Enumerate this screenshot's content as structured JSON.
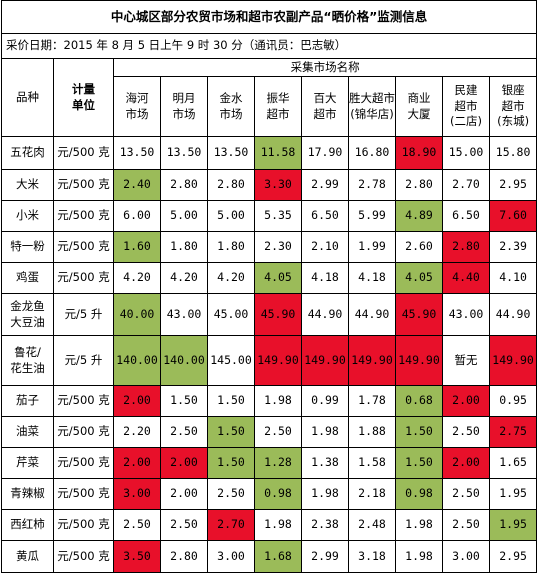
{
  "title": "中心城区部分农贸市场和超市农副产品“晒价格”监测信息",
  "subtitle": "采价日期：2015 年 8 月 5 日上午 9 时 30 分（通讯员：巴志敏）",
  "header": {
    "item": "品种",
    "unit": "计量\n单位",
    "group": "采集市场名称",
    "markets": [
      "海河\n市场",
      "明月\n市场",
      "金水\n市场",
      "振华\n超市",
      "百大\n超市",
      "胜大超市\n(锦华店)",
      "商业\n大厦",
      "民建\n超市\n(二店)",
      "银座\n超市\n(东城)"
    ]
  },
  "table": {
    "rows": [
      {
        "name": "五花肉",
        "unit": "元/500 克",
        "cells": [
          "13.50",
          "13.50",
          "13.50",
          "11.58",
          "17.90",
          "16.80",
          "18.90",
          "15.00",
          "15.80"
        ],
        "fills": [
          null,
          null,
          null,
          "#9bbb59",
          null,
          null,
          "#e8102a",
          null,
          null
        ]
      },
      {
        "name": "大米",
        "unit": "元/500 克",
        "cells": [
          "2.40",
          "2.80",
          "2.80",
          "3.30",
          "2.99",
          "2.78",
          "2.80",
          "2.70",
          "2.95"
        ],
        "fills": [
          "#9bbb59",
          null,
          null,
          "#e8102a",
          null,
          null,
          null,
          null,
          null
        ]
      },
      {
        "name": "小米",
        "unit": "元/500 克",
        "cells": [
          "6.00",
          "5.00",
          "5.00",
          "5.35",
          "6.50",
          "5.99",
          "4.89",
          "6.50",
          "7.60"
        ],
        "fills": [
          null,
          null,
          null,
          null,
          null,
          null,
          "#9bbb59",
          null,
          "#e8102a"
        ]
      },
      {
        "name": "特一粉",
        "unit": "元/500 克",
        "cells": [
          "1.60",
          "1.80",
          "1.80",
          "2.30",
          "2.10",
          "1.99",
          "2.60",
          "2.80",
          "2.39"
        ],
        "fills": [
          "#9bbb59",
          null,
          null,
          null,
          null,
          null,
          null,
          "#e8102a",
          null
        ]
      },
      {
        "name": "鸡蛋",
        "unit": "元/500 克",
        "cells": [
          "4.20",
          "4.20",
          "4.20",
          "4.05",
          "4.18",
          "4.18",
          "4.05",
          "4.40",
          "4.10"
        ],
        "fills": [
          null,
          null,
          null,
          "#9bbb59",
          null,
          null,
          "#9bbb59",
          "#e8102a",
          null
        ]
      },
      {
        "name": "金龙鱼\n大豆油",
        "unit": "元/5 升",
        "cells": [
          "40.00",
          "43.00",
          "45.00",
          "45.90",
          "44.90",
          "44.90",
          "45.90",
          "43.00",
          "44.90"
        ],
        "fills": [
          "#9bbb59",
          null,
          null,
          "#e8102a",
          null,
          null,
          "#e8102a",
          null,
          null
        ]
      },
      {
        "name": "鲁花/\n花生油",
        "unit": "元/5 升",
        "cells": [
          "140.00",
          "140.00",
          "145.00",
          "149.90",
          "149.90",
          "149.90",
          "149.90",
          "暂无",
          "149.90"
        ],
        "fills": [
          "#9bbb59",
          "#9bbb59",
          null,
          "#e8102a",
          "#e8102a",
          "#e8102a",
          "#e8102a",
          null,
          "#e8102a"
        ]
      },
      {
        "name": "茄子",
        "unit": "元/500 克",
        "cells": [
          "2.00",
          "1.50",
          "1.50",
          "1.98",
          "0.99",
          "1.78",
          "0.68",
          "2.00",
          "0.95"
        ],
        "fills": [
          "#e8102a",
          null,
          null,
          null,
          null,
          null,
          "#9bbb59",
          "#e8102a",
          null
        ]
      },
      {
        "name": "油菜",
        "unit": "元/500 克",
        "cells": [
          "2.20",
          "2.50",
          "1.50",
          "2.50",
          "1.98",
          "1.88",
          "1.50",
          "2.50",
          "2.75"
        ],
        "fills": [
          null,
          null,
          "#9bbb59",
          null,
          null,
          null,
          "#9bbb59",
          null,
          "#e8102a"
        ]
      },
      {
        "name": "芹菜",
        "unit": "元/500 克",
        "cells": [
          "2.00",
          "2.00",
          "1.50",
          "1.28",
          "1.38",
          "1.58",
          "1.50",
          "2.00",
          "1.65"
        ],
        "fills": [
          "#e8102a",
          "#e8102a",
          "#9bbb59",
          "#9bbb59",
          null,
          null,
          "#9bbb59",
          "#e8102a",
          null
        ]
      },
      {
        "name": "青辣椒",
        "unit": "元/500 克",
        "cells": [
          "3.00",
          "2.00",
          "2.50",
          "0.98",
          "1.98",
          "2.18",
          "0.98",
          "2.50",
          "1.95"
        ],
        "fills": [
          "#e8102a",
          null,
          null,
          "#9bbb59",
          null,
          null,
          "#9bbb59",
          null,
          null
        ]
      },
      {
        "name": "西红柿",
        "unit": "元/500 克",
        "cells": [
          "2.50",
          "2.50",
          "2.70",
          "1.98",
          "2.38",
          "2.48",
          "1.98",
          "2.50",
          "1.95"
        ],
        "fills": [
          null,
          null,
          "#e8102a",
          null,
          null,
          null,
          null,
          null,
          "#9bbb59"
        ]
      },
      {
        "name": "黄瓜",
        "unit": "元/500 克",
        "cells": [
          "3.50",
          "2.80",
          "3.00",
          "1.68",
          "2.99",
          "3.18",
          "1.98",
          "3.00",
          "2.95"
        ],
        "fills": [
          "#e8102a",
          null,
          null,
          "#9bbb59",
          null,
          null,
          null,
          null,
          null
        ]
      }
    ]
  }
}
